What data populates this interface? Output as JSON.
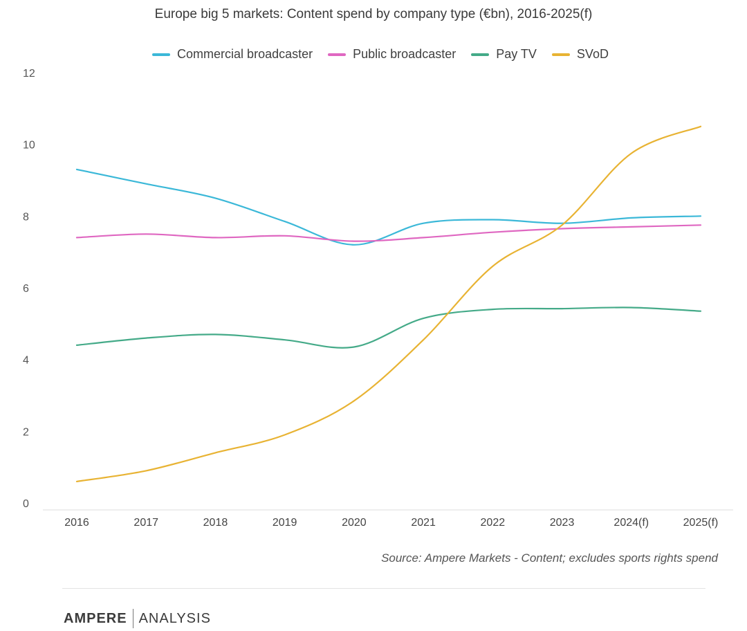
{
  "chart_data": {
    "type": "line",
    "title": "Europe big 5 markets: Content spend by company type (€bn), 2016-2025(f)",
    "categories": [
      "2016",
      "2017",
      "2018",
      "2019",
      "2020",
      "2021",
      "2022",
      "2023",
      "2024(f)",
      "2025(f)"
    ],
    "y_ticks": [
      "0",
      "2",
      "4",
      "6",
      "8",
      "10",
      "12"
    ],
    "ylim": [
      0,
      12
    ],
    "xlabel": "",
    "ylabel": "",
    "grid": false,
    "legend_position": "top-center",
    "series": [
      {
        "name": "Commercial broadcaster",
        "color": "#3bb8d8",
        "values": [
          9.3,
          8.9,
          8.5,
          7.85,
          7.2,
          7.8,
          7.9,
          7.8,
          7.95,
          8.0
        ]
      },
      {
        "name": "Public broadcaster",
        "color": "#df67c1",
        "values": [
          7.4,
          7.5,
          7.4,
          7.45,
          7.3,
          7.4,
          7.55,
          7.65,
          7.7,
          7.75
        ]
      },
      {
        "name": "Pay TV",
        "color": "#44aa88",
        "values": [
          4.4,
          4.6,
          4.7,
          4.55,
          4.35,
          5.15,
          5.4,
          5.42,
          5.45,
          5.35
        ]
      },
      {
        "name": "SVoD",
        "color": "#e8b333",
        "values": [
          0.6,
          0.9,
          1.4,
          1.9,
          2.85,
          4.55,
          6.6,
          7.75,
          9.75,
          10.5
        ]
      }
    ]
  },
  "source": "Source: Ampere Markets - Content; excludes sports rights spend",
  "footer": {
    "logo_left": "AMPERE",
    "logo_right": "ANALYSIS"
  }
}
